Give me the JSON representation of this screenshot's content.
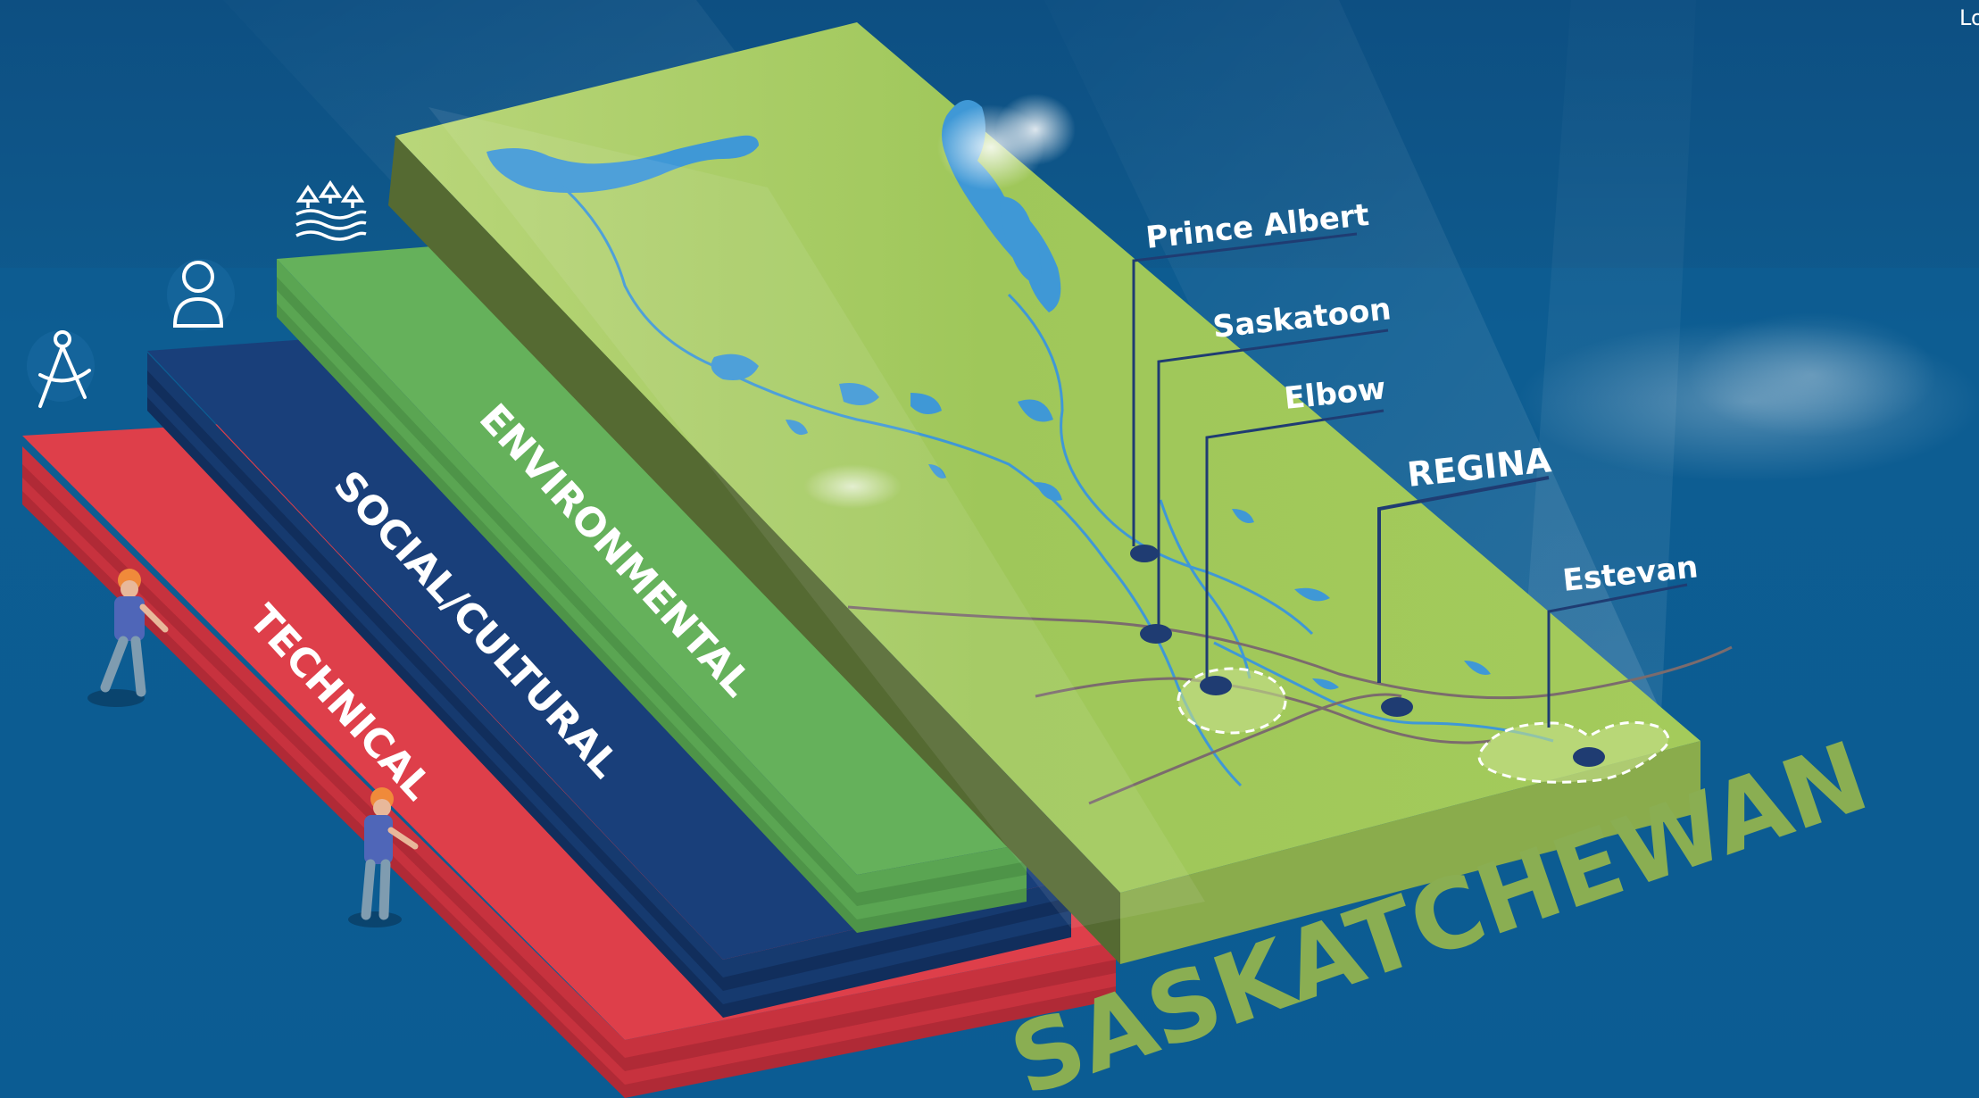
{
  "layers": {
    "technical": "TECHNICAL",
    "social": "SOCIAL/CULTURAL",
    "environmental": "ENVIRONMENTAL"
  },
  "cities": {
    "prince_albert": "Prince Albert",
    "saskatoon": "Saskatoon",
    "elbow": "Elbow",
    "regina": "REGINA",
    "estevan": "Estevan"
  },
  "province": "SASKATCHEWAN",
  "corner_text": "Lo",
  "icons": [
    "compass-drafting-icon",
    "person-icon",
    "trees-water-icon"
  ],
  "colors": {
    "background": "#0e5a8c",
    "technical": "#de3f4a",
    "social": "#193f7a",
    "environmental": "#65b15b",
    "map": "#a2c95c",
    "map_side": "#4c5f2f",
    "water": "#3f98d6",
    "province_text": "#8aae52"
  }
}
